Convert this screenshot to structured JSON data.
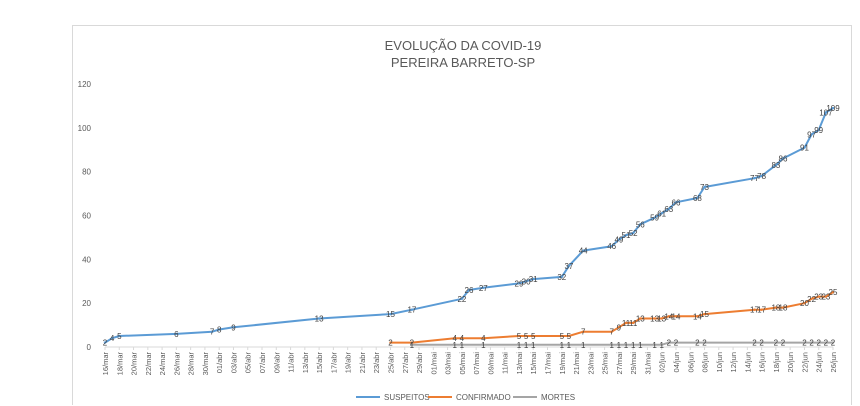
{
  "chart_data": {
    "type": "line",
    "title": "EVOLUÇÃO DA COVID-19",
    "subtitle": "PEREIRA BARRETO-SP",
    "xlabel": "",
    "ylabel": "",
    "ylim": [
      0,
      120
    ],
    "yticks": [
      0,
      20,
      40,
      60,
      80,
      100,
      120
    ],
    "grid": false,
    "legend_position": "bottom",
    "x_start": "2020-03-16",
    "x_end": "2020-06-26",
    "x_tick_labels": [
      "16/mar",
      "18/mar",
      "20/mar",
      "22/mar",
      "24/mar",
      "26/mar",
      "28/mar",
      "30/mar",
      "01/abr",
      "03/abr",
      "05/abr",
      "07/abr",
      "09/abr",
      "11/abr",
      "13/abr",
      "15/abr",
      "17/abr",
      "19/abr",
      "21/abr",
      "23/abr",
      "25/abr",
      "27/abr",
      "29/abr",
      "01/mai",
      "03/mai",
      "05/mai",
      "07/mai",
      "09/mai",
      "11/mai",
      "13/mai",
      "15/mai",
      "17/mai",
      "19/mai",
      "21/mai",
      "23/mai",
      "25/mai",
      "27/mai",
      "29/mai",
      "31/mai",
      "02/jun",
      "04/jun",
      "06/jun",
      "08/jun",
      "10/jun",
      "12/jun",
      "14/jun",
      "16/jun",
      "18/jun",
      "20/jun",
      "22/jun",
      "24/jun",
      "26/jun"
    ],
    "series": [
      {
        "name": "SUSPEITOS",
        "color": "#5b9bd5",
        "points": [
          [
            "2020-03-16",
            2
          ],
          [
            "2020-03-17",
            4
          ],
          [
            "2020-03-18",
            5
          ],
          [
            "2020-03-26",
            6
          ],
          [
            "2020-03-31",
            7
          ],
          [
            "2020-04-01",
            8
          ],
          [
            "2020-04-03",
            9
          ],
          [
            "2020-04-15",
            13
          ],
          [
            "2020-04-25",
            15
          ],
          [
            "2020-04-28",
            17
          ],
          [
            "2020-05-05",
            22
          ],
          [
            "2020-05-06",
            26
          ],
          [
            "2020-05-08",
            27
          ],
          [
            "2020-05-13",
            29
          ],
          [
            "2020-05-14",
            30
          ],
          [
            "2020-05-15",
            31
          ],
          [
            "2020-05-19",
            32
          ],
          [
            "2020-05-20",
            37
          ],
          [
            "2020-05-22",
            44
          ],
          [
            "2020-05-26",
            46
          ],
          [
            "2020-05-27",
            49
          ],
          [
            "2020-05-28",
            51
          ],
          [
            "2020-05-29",
            52
          ],
          [
            "2020-05-30",
            56
          ],
          [
            "2020-06-01",
            59
          ],
          [
            "2020-06-02",
            61
          ],
          [
            "2020-06-03",
            63
          ],
          [
            "2020-06-04",
            66
          ],
          [
            "2020-06-07",
            68
          ],
          [
            "2020-06-08",
            73
          ],
          [
            "2020-06-15",
            77
          ],
          [
            "2020-06-16",
            78
          ],
          [
            "2020-06-18",
            83
          ],
          [
            "2020-06-19",
            86
          ],
          [
            "2020-06-22",
            91
          ],
          [
            "2020-06-23",
            97
          ],
          [
            "2020-06-24",
            99
          ],
          [
            "2020-06-25",
            107
          ],
          [
            "2020-06-26",
            109
          ]
        ]
      },
      {
        "name": "CONFIRMADO",
        "color": "#ed7d31",
        "points": [
          [
            "2020-04-25",
            2
          ],
          [
            "2020-04-28",
            2
          ],
          [
            "2020-05-04",
            4
          ],
          [
            "2020-05-05",
            4
          ],
          [
            "2020-05-08",
            4
          ],
          [
            "2020-05-13",
            5
          ],
          [
            "2020-05-14",
            5
          ],
          [
            "2020-05-15",
            5
          ],
          [
            "2020-05-19",
            5
          ],
          [
            "2020-05-20",
            5
          ],
          [
            "2020-05-22",
            7
          ],
          [
            "2020-05-26",
            7
          ],
          [
            "2020-05-27",
            9
          ],
          [
            "2020-05-28",
            11
          ],
          [
            "2020-05-29",
            11
          ],
          [
            "2020-05-30",
            13
          ],
          [
            "2020-06-01",
            13
          ],
          [
            "2020-06-02",
            13
          ],
          [
            "2020-06-03",
            14
          ],
          [
            "2020-06-04",
            14
          ],
          [
            "2020-06-07",
            14
          ],
          [
            "2020-06-08",
            15
          ],
          [
            "2020-06-15",
            17
          ],
          [
            "2020-06-16",
            17
          ],
          [
            "2020-06-18",
            18
          ],
          [
            "2020-06-19",
            18
          ],
          [
            "2020-06-22",
            20
          ],
          [
            "2020-06-23",
            22
          ],
          [
            "2020-06-24",
            23
          ],
          [
            "2020-06-25",
            23
          ],
          [
            "2020-06-26",
            25
          ]
        ]
      },
      {
        "name": "MORTES",
        "color": "#a5a5a5",
        "points": [
          [
            "2020-04-28",
            1
          ],
          [
            "2020-05-04",
            1
          ],
          [
            "2020-05-05",
            1
          ],
          [
            "2020-05-08",
            1
          ],
          [
            "2020-05-13",
            1
          ],
          [
            "2020-05-14",
            1
          ],
          [
            "2020-05-15",
            1
          ],
          [
            "2020-05-19",
            1
          ],
          [
            "2020-05-20",
            1
          ],
          [
            "2020-05-22",
            1
          ],
          [
            "2020-05-26",
            1
          ],
          [
            "2020-05-27",
            1
          ],
          [
            "2020-05-28",
            1
          ],
          [
            "2020-05-29",
            1
          ],
          [
            "2020-05-30",
            1
          ],
          [
            "2020-06-01",
            1
          ],
          [
            "2020-06-02",
            1
          ],
          [
            "2020-06-03",
            2
          ],
          [
            "2020-06-04",
            2
          ],
          [
            "2020-06-07",
            2
          ],
          [
            "2020-06-08",
            2
          ],
          [
            "2020-06-15",
            2
          ],
          [
            "2020-06-16",
            2
          ],
          [
            "2020-06-18",
            2
          ],
          [
            "2020-06-19",
            2
          ],
          [
            "2020-06-22",
            2
          ],
          [
            "2020-06-23",
            2
          ],
          [
            "2020-06-24",
            2
          ],
          [
            "2020-06-25",
            2
          ],
          [
            "2020-06-26",
            2
          ]
        ]
      }
    ]
  }
}
